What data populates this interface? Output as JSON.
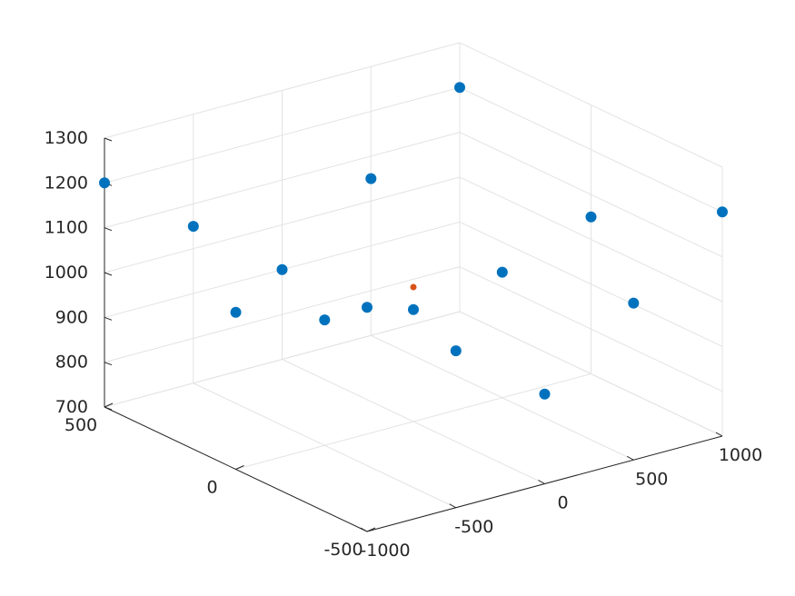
{
  "chart_data": {
    "type": "scatter",
    "dimensions": 3,
    "title": "",
    "xlabel": "",
    "ylabel": "",
    "zlabel": "",
    "xlim": [
      -1000,
      1000
    ],
    "ylim": [
      -500,
      500
    ],
    "zlim": [
      700,
      1300
    ],
    "x_ticks": [
      "-1000",
      "-500",
      "0",
      "500",
      "1000"
    ],
    "y_ticks": [
      "-500",
      "0",
      "500"
    ],
    "z_ticks": [
      "700",
      "800",
      "900",
      "1000",
      "1100",
      "1200",
      "1300"
    ],
    "grid": true,
    "legend": "none",
    "marker_color": "#0072BD",
    "series": [
      {
        "marker": "filled-circle",
        "color": "#0072BD",
        "description_points": "sampled points of a four-fold symmetric saddle-like surface, edges high at corners (~1200) and low in middle (~800)",
        "x": [
          -1000,
          -500,
          0,
          500,
          1000,
          -1000,
          -500,
          0,
          500,
          1000,
          -1000,
          -500,
          0,
          500,
          1000
        ],
        "y": [
          500,
          500,
          500,
          500,
          500,
          0,
          0,
          0,
          0,
          0,
          -500,
          -500,
          -500,
          -500,
          -500
        ],
        "z": [
          1200,
          1050,
          900,
          1050,
          1200,
          1050,
          980,
          950,
          980,
          1050,
          1200,
          1050,
          900,
          1050,
          1200
        ]
      },
      {
        "marker": "small-circle",
        "color": "#D95319",
        "x": [
          0
        ],
        "y": [
          0
        ],
        "z": [
          1000
        ]
      }
    ]
  }
}
